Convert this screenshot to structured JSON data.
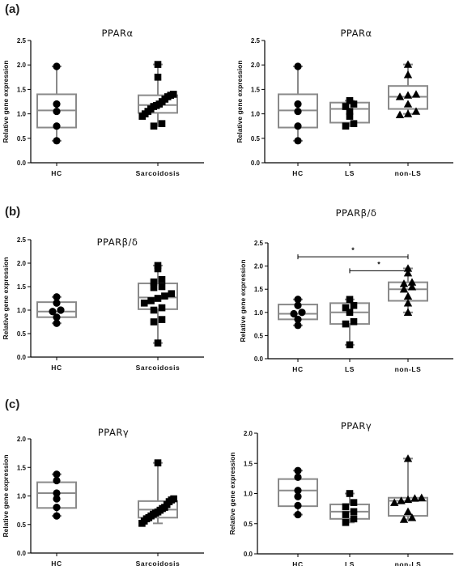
{
  "panel_labels": [
    "(a)",
    "(b)",
    "(c)"
  ],
  "chart_data": [
    {
      "id": "a-left",
      "panel": 0,
      "type": "box",
      "title": "PPARα",
      "ylabel": "Relative gene expression",
      "ylim": [
        0,
        2.5
      ],
      "yticks": [
        "0.0",
        "0.5",
        "1.0",
        "1.5",
        "2.0",
        "2.5"
      ],
      "categories": [
        "HC",
        "Sarcoidosis"
      ],
      "marker": [
        "circle",
        "square"
      ],
      "boxes": [
        {
          "min": 0.45,
          "q1": 0.72,
          "median": 1.07,
          "q3": 1.4,
          "max": 1.97
        },
        {
          "min": 0.75,
          "q1": 1.02,
          "median": 1.18,
          "q3": 1.38,
          "max": 2.01
        }
      ],
      "points": [
        [
          1.97,
          1.2,
          1.05,
          0.75,
          0.45
        ],
        [
          2.01,
          1.75,
          1.4,
          1.38,
          1.35,
          1.3,
          1.25,
          1.2,
          1.17,
          1.15,
          1.1,
          1.05,
          1.0,
          0.95,
          0.8,
          0.75
        ]
      ],
      "significance": []
    },
    {
      "id": "a-right",
      "panel": 0,
      "type": "box",
      "title": "PPARα",
      "ylabel": "Relative gene expression",
      "ylim": [
        0,
        2.5
      ],
      "yticks": [
        "0.0",
        "0.5",
        "1.0",
        "1.5",
        "2.0",
        "2.5"
      ],
      "categories": [
        "HC",
        "LS",
        "non-LS"
      ],
      "marker": [
        "circle",
        "square",
        "triangle"
      ],
      "boxes": [
        {
          "min": 0.45,
          "q1": 0.72,
          "median": 1.07,
          "q3": 1.4,
          "max": 1.97
        },
        {
          "min": 0.75,
          "q1": 0.82,
          "median": 1.1,
          "q3": 1.23,
          "max": 1.27
        },
        {
          "min": 1.0,
          "q1": 1.1,
          "median": 1.35,
          "q3": 1.57,
          "max": 2.01
        }
      ],
      "points": [
        [
          1.97,
          1.2,
          1.05,
          0.75,
          0.45
        ],
        [
          1.27,
          1.2,
          1.15,
          1.05,
          0.95,
          0.8,
          0.75
        ],
        [
          2.01,
          1.8,
          1.4,
          1.38,
          1.35,
          1.2,
          1.05,
          1.0,
          0.98
        ]
      ],
      "significance": []
    },
    {
      "id": "b-left",
      "panel": 1,
      "type": "box",
      "title": "PPARβ/δ",
      "ylabel": "Relative gene expression",
      "ylim": [
        0,
        2.5
      ],
      "yticks": [
        "0.0",
        "0.5",
        "1.0",
        "1.5",
        "2.0",
        "2.5"
      ],
      "categories": [
        "HC",
        "Sarcoidosis"
      ],
      "marker": [
        "circle",
        "square"
      ],
      "boxes": [
        {
          "min": 0.72,
          "q1": 0.85,
          "median": 0.97,
          "q3": 1.17,
          "max": 1.28
        },
        {
          "min": 0.3,
          "q1": 1.02,
          "median": 1.27,
          "q3": 1.57,
          "max": 1.95
        }
      ],
      "points": [
        [
          1.28,
          1.15,
          1.0,
          0.97,
          0.85,
          0.72
        ],
        [
          1.95,
          1.88,
          1.65,
          1.6,
          1.5,
          1.48,
          1.35,
          1.3,
          1.25,
          1.2,
          1.15,
          1.05,
          1.0,
          0.8,
          0.75,
          0.3
        ]
      ],
      "significance": []
    },
    {
      "id": "b-right",
      "panel": 1,
      "type": "box",
      "title": "PPARβ/δ",
      "ylabel": "Relative gene expression",
      "ylim": [
        0,
        2.5
      ],
      "yticks": [
        "0.0",
        "0.5",
        "1.0",
        "1.5",
        "2.0",
        "2.5"
      ],
      "categories": [
        "HC",
        "LS",
        "non-LS"
      ],
      "marker": [
        "circle",
        "square",
        "triangle"
      ],
      "boxes": [
        {
          "min": 0.72,
          "q1": 0.85,
          "median": 0.97,
          "q3": 1.17,
          "max": 1.28
        },
        {
          "min": 0.3,
          "q1": 0.75,
          "median": 1.0,
          "q3": 1.2,
          "max": 1.28
        },
        {
          "min": 1.0,
          "q1": 1.25,
          "median": 1.5,
          "q3": 1.65,
          "max": 1.95
        }
      ],
      "points": [
        [
          1.28,
          1.15,
          1.0,
          0.97,
          0.85,
          0.72
        ],
        [
          1.28,
          1.15,
          1.1,
          1.0,
          0.8,
          0.75,
          0.3
        ],
        [
          1.95,
          1.85,
          1.65,
          1.62,
          1.55,
          1.5,
          1.35,
          1.2,
          1.0
        ]
      ],
      "significance": [
        {
          "from": 0,
          "to": 2,
          "y": 2.2,
          "label": "*"
        },
        {
          "from": 1,
          "to": 2,
          "y": 1.9,
          "label": "*"
        }
      ]
    },
    {
      "id": "c-left",
      "panel": 2,
      "type": "box",
      "title": "PPARγ",
      "ylabel": "Relative gene expression",
      "ylim": [
        0,
        2.0
      ],
      "yticks": [
        "0.0",
        "0.5",
        "1.0",
        "1.5",
        "2.0"
      ],
      "categories": [
        "HC",
        "Sarcoidosis"
      ],
      "marker": [
        "circle",
        "square"
      ],
      "boxes": [
        {
          "min": 0.65,
          "q1": 0.79,
          "median": 1.05,
          "q3": 1.24,
          "max": 1.38
        },
        {
          "min": 0.52,
          "q1": 0.62,
          "median": 0.76,
          "q3": 0.91,
          "max": 1.58
        }
      ],
      "points": [
        [
          1.38,
          1.27,
          1.05,
          0.95,
          0.8,
          0.65
        ],
        [
          1.58,
          0.95,
          0.93,
          0.9,
          0.85,
          0.8,
          0.78,
          0.75,
          0.72,
          0.7,
          0.68,
          0.65,
          0.62,
          0.6,
          0.56,
          0.52
        ]
      ],
      "significance": []
    },
    {
      "id": "c-right",
      "panel": 2,
      "type": "box",
      "title": "PPARγ",
      "ylabel": "Relative gene expression",
      "ylim": [
        0,
        2.0
      ],
      "yticks": [
        "0.0",
        "0.5",
        "1.0",
        "1.5",
        "2.0"
      ],
      "categories": [
        "HC",
        "LS",
        "non-LS"
      ],
      "marker": [
        "circle",
        "square",
        "triangle"
      ],
      "boxes": [
        {
          "min": 0.65,
          "q1": 0.79,
          "median": 1.05,
          "q3": 1.24,
          "max": 1.38
        },
        {
          "min": 0.52,
          "q1": 0.58,
          "median": 0.7,
          "q3": 0.82,
          "max": 1.0
        },
        {
          "min": 0.57,
          "q1": 0.63,
          "median": 0.88,
          "q3": 0.93,
          "max": 1.58
        }
      ],
      "points": [
        [
          1.38,
          1.27,
          1.05,
          0.95,
          0.8,
          0.65
        ],
        [
          1.0,
          0.85,
          0.78,
          0.7,
          0.65,
          0.58,
          0.52
        ],
        [
          1.58,
          0.93,
          0.92,
          0.9,
          0.88,
          0.85,
          0.7,
          0.6,
          0.57
        ]
      ],
      "significance": []
    }
  ]
}
